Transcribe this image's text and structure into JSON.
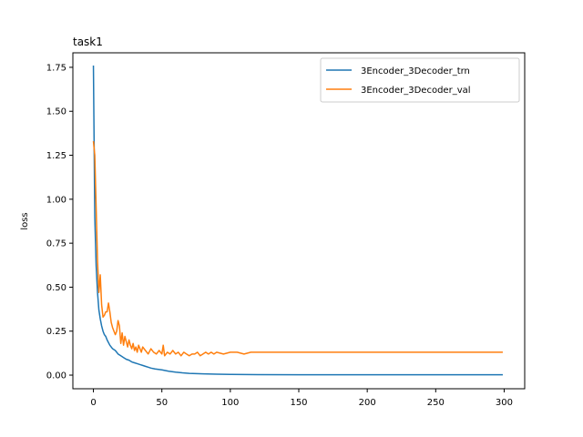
{
  "chart_data": {
    "type": "line",
    "title": "task1",
    "xlabel": "",
    "ylabel": "loss",
    "xlim": [
      -15,
      315
    ],
    "ylim": [
      -0.0775,
      1.8325
    ],
    "xticks": [
      0,
      50,
      100,
      150,
      200,
      250,
      300
    ],
    "yticks": [
      0.0,
      0.25,
      0.5,
      0.75,
      1.0,
      1.25,
      1.5,
      1.75
    ],
    "ytick_labels": [
      "0.00",
      "0.25",
      "0.50",
      "0.75",
      "1.00",
      "1.25",
      "1.50",
      "1.75"
    ],
    "grid": false,
    "legend_position": "top-right",
    "series": [
      {
        "name": "3Encoder_3Decoder_trn",
        "color": "#1f77b4",
        "points": [
          [
            0,
            1.76
          ],
          [
            1,
            0.9
          ],
          [
            2,
            0.62
          ],
          [
            3,
            0.47
          ],
          [
            4,
            0.37
          ],
          [
            5,
            0.32
          ],
          [
            6,
            0.28
          ],
          [
            7,
            0.25
          ],
          [
            8,
            0.23
          ],
          [
            9,
            0.22
          ],
          [
            10,
            0.2
          ],
          [
            12,
            0.17
          ],
          [
            14,
            0.15
          ],
          [
            16,
            0.14
          ],
          [
            18,
            0.12
          ],
          [
            20,
            0.11
          ],
          [
            22,
            0.1
          ],
          [
            24,
            0.09
          ],
          [
            26,
            0.085
          ],
          [
            28,
            0.075
          ],
          [
            30,
            0.07
          ],
          [
            32,
            0.065
          ],
          [
            34,
            0.06
          ],
          [
            36,
            0.055
          ],
          [
            38,
            0.05
          ],
          [
            40,
            0.045
          ],
          [
            42,
            0.04
          ],
          [
            45,
            0.035
          ],
          [
            50,
            0.03
          ],
          [
            55,
            0.022
          ],
          [
            60,
            0.017
          ],
          [
            65,
            0.013
          ],
          [
            70,
            0.01
          ],
          [
            80,
            0.007
          ],
          [
            90,
            0.005
          ],
          [
            100,
            0.004
          ],
          [
            120,
            0.003
          ],
          [
            150,
            0.002
          ],
          [
            200,
            0.002
          ],
          [
            250,
            0.002
          ],
          [
            299,
            0.002
          ]
        ]
      },
      {
        "name": "3Encoder_3Decoder_val",
        "color": "#ff7f0e",
        "points": [
          [
            0,
            1.33
          ],
          [
            1,
            1.25
          ],
          [
            2,
            0.95
          ],
          [
            3,
            0.65
          ],
          [
            4,
            0.47
          ],
          [
            5,
            0.57
          ],
          [
            6,
            0.4
          ],
          [
            7,
            0.33
          ],
          [
            8,
            0.34
          ],
          [
            9,
            0.36
          ],
          [
            10,
            0.36
          ],
          [
            11,
            0.41
          ],
          [
            12,
            0.36
          ],
          [
            13,
            0.3
          ],
          [
            14,
            0.27
          ],
          [
            15,
            0.25
          ],
          [
            16,
            0.23
          ],
          [
            17,
            0.25
          ],
          [
            18,
            0.31
          ],
          [
            19,
            0.28
          ],
          [
            20,
            0.18
          ],
          [
            21,
            0.24
          ],
          [
            22,
            0.17
          ],
          [
            23,
            0.22
          ],
          [
            24,
            0.19
          ],
          [
            25,
            0.16
          ],
          [
            26,
            0.2
          ],
          [
            27,
            0.17
          ],
          [
            28,
            0.15
          ],
          [
            29,
            0.18
          ],
          [
            30,
            0.14
          ],
          [
            31,
            0.16
          ],
          [
            32,
            0.13
          ],
          [
            33,
            0.17
          ],
          [
            34,
            0.15
          ],
          [
            35,
            0.13
          ],
          [
            36,
            0.16
          ],
          [
            38,
            0.14
          ],
          [
            40,
            0.12
          ],
          [
            42,
            0.15
          ],
          [
            44,
            0.13
          ],
          [
            46,
            0.12
          ],
          [
            48,
            0.14
          ],
          [
            50,
            0.12
          ],
          [
            51,
            0.17
          ],
          [
            52,
            0.11
          ],
          [
            54,
            0.13
          ],
          [
            56,
            0.12
          ],
          [
            58,
            0.14
          ],
          [
            60,
            0.12
          ],
          [
            62,
            0.13
          ],
          [
            64,
            0.11
          ],
          [
            66,
            0.13
          ],
          [
            68,
            0.12
          ],
          [
            70,
            0.11
          ],
          [
            72,
            0.12
          ],
          [
            74,
            0.12
          ],
          [
            76,
            0.13
          ],
          [
            78,
            0.11
          ],
          [
            80,
            0.12
          ],
          [
            82,
            0.13
          ],
          [
            84,
            0.12
          ],
          [
            86,
            0.13
          ],
          [
            88,
            0.12
          ],
          [
            90,
            0.13
          ],
          [
            95,
            0.12
          ],
          [
            100,
            0.13
          ],
          [
            105,
            0.13
          ],
          [
            110,
            0.12
          ],
          [
            115,
            0.13
          ],
          [
            120,
            0.13
          ],
          [
            130,
            0.13
          ],
          [
            140,
            0.13
          ],
          [
            150,
            0.13
          ],
          [
            160,
            0.13
          ],
          [
            180,
            0.13
          ],
          [
            200,
            0.13
          ],
          [
            220,
            0.13
          ],
          [
            250,
            0.13
          ],
          [
            280,
            0.13
          ],
          [
            299,
            0.13
          ]
        ]
      }
    ]
  }
}
